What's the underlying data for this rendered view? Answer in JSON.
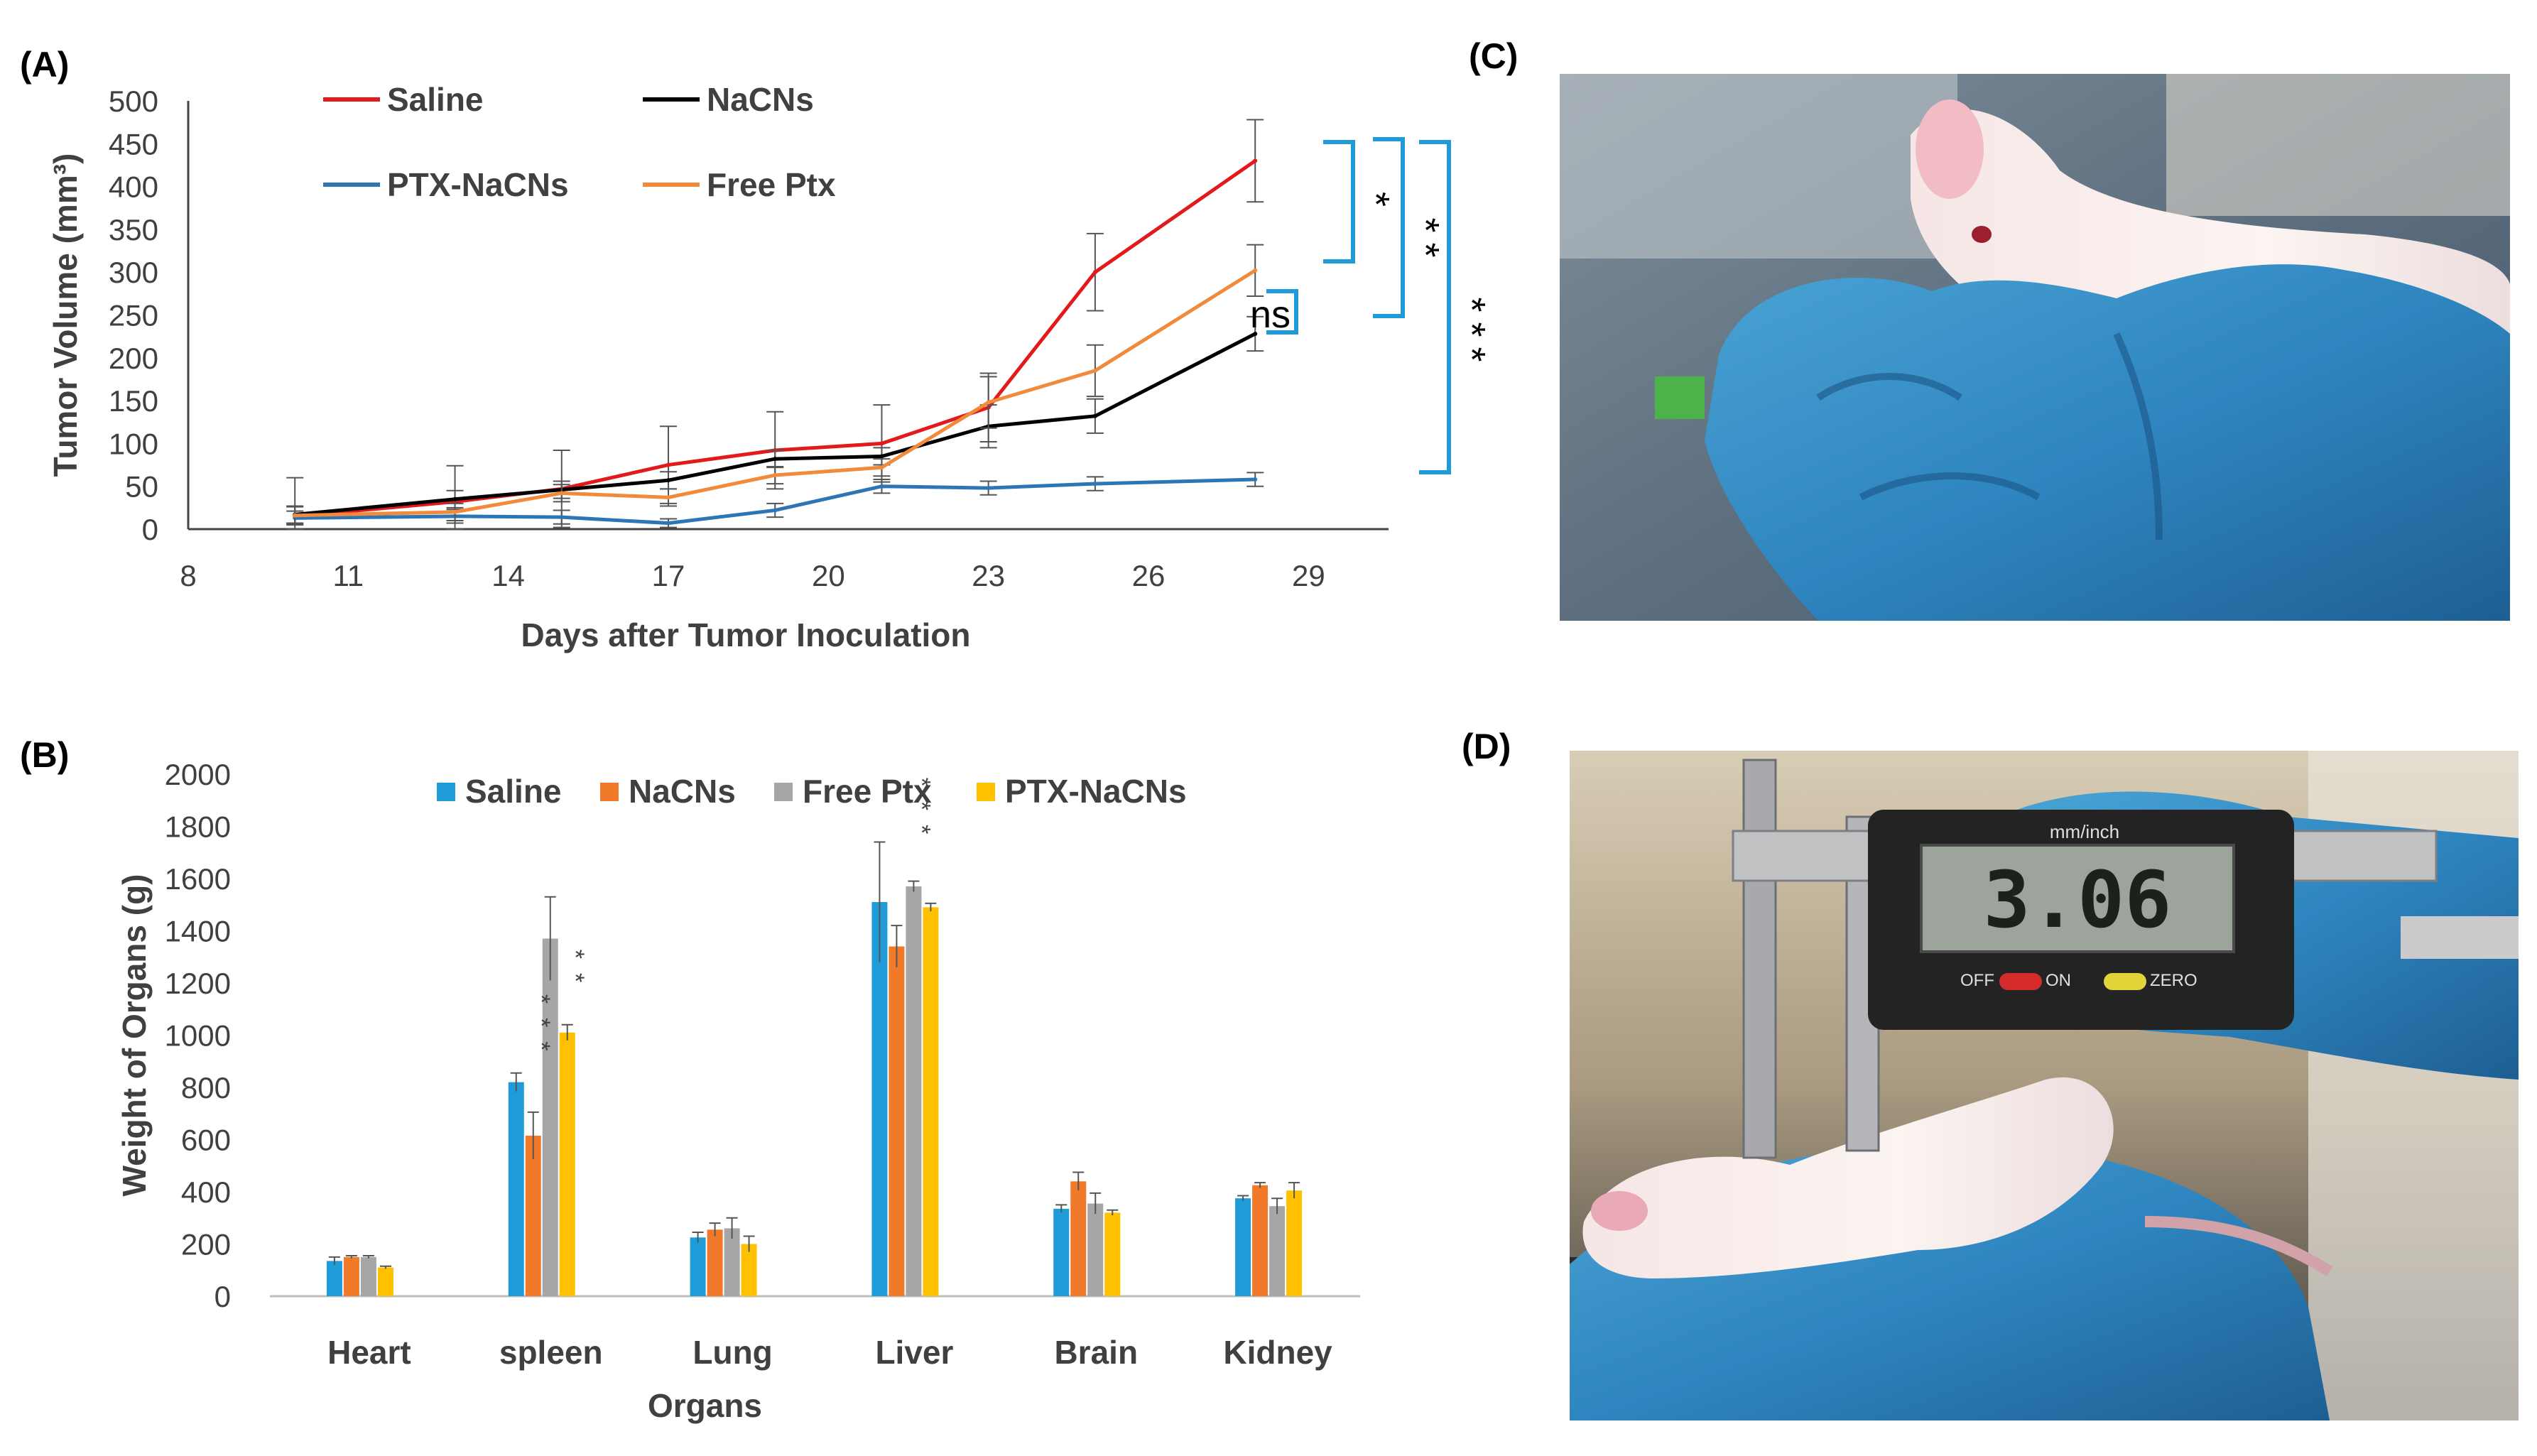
{
  "panel_labels": {
    "a": "(A)",
    "b": "(B)",
    "c": "(C)",
    "d": "(D)"
  },
  "caliper_display": "3.06",
  "caliper_labels": {
    "unit": "mm/inch",
    "off": "OFF",
    "on": "ON",
    "zero": "ZERO"
  },
  "colors": {
    "saline_line": "#e31a1c",
    "nacns_line": "#000000",
    "ptx_nacns_line": "#2e75b6",
    "free_ptx_line": "#f28a3c",
    "bar_saline": "#1f9bd7",
    "bar_nacns": "#f07a2a",
    "bar_free_ptx": "#a6a6a6",
    "bar_ptx_nacns": "#ffc000",
    "bracket": "#1f9bd7"
  },
  "chart_data": [
    {
      "type": "line",
      "title": "",
      "xlabel": "Days after Tumor Inoculation",
      "ylabel": "Tumor Volume (mm³)",
      "xlim": [
        8,
        30.5
      ],
      "ylim": [
        0,
        500
      ],
      "xticks": [
        "8",
        "11",
        "14",
        "17",
        "20",
        "23",
        "26",
        "29"
      ],
      "yticks": [
        "0",
        "50",
        "100",
        "150",
        "200",
        "250",
        "300",
        "350",
        "400",
        "450",
        "500"
      ],
      "x": [
        10,
        13,
        15,
        17,
        19,
        21,
        23,
        25,
        28
      ],
      "series": [
        {
          "name": "Saline",
          "values": [
            15,
            32,
            47,
            75,
            92,
            100,
            142,
            300,
            430
          ],
          "errors": [
            45,
            42,
            45,
            45,
            45,
            45,
            40,
            45,
            48
          ]
        },
        {
          "name": "NaCNs",
          "values": [
            17,
            35,
            46,
            57,
            82,
            85,
            120,
            132,
            228
          ],
          "errors": [
            10,
            10,
            10,
            10,
            10,
            10,
            25,
            20,
            20
          ]
        },
        {
          "name": "PTX-NaCNs",
          "values": [
            13,
            15,
            14,
            7,
            22,
            50,
            48,
            53,
            58
          ],
          "errors": [
            8,
            8,
            8,
            5,
            8,
            8,
            8,
            8,
            8
          ]
        },
        {
          "name": "Free Ptx",
          "values": [
            16,
            20,
            42,
            37,
            63,
            72,
            148,
            185,
            302
          ],
          "errors": [
            10,
            10,
            10,
            10,
            10,
            10,
            30,
            30,
            30
          ]
        }
      ],
      "legend": [
        "Saline",
        "NaCNs",
        "PTX-NaCNs",
        "Free Ptx"
      ],
      "legend_position": "top-left",
      "annotations": [
        {
          "type": "bracket",
          "from": "Saline",
          "to": "Free Ptx",
          "label": "*"
        },
        {
          "type": "bracket",
          "from": "Saline",
          "to": "NaCNs",
          "label": "**"
        },
        {
          "type": "bracket",
          "from": "Free Ptx",
          "to": "NaCNs",
          "label": "ns"
        },
        {
          "type": "bracket",
          "from": "Saline",
          "to": "PTX-NaCNs",
          "label": "***"
        }
      ]
    },
    {
      "type": "bar",
      "title": "",
      "xlabel": "Organs",
      "ylabel": "Weight of Organs (g)",
      "ylim": [
        0,
        2000
      ],
      "yticks": [
        "0",
        "200",
        "400",
        "600",
        "800",
        "1000",
        "1200",
        "1400",
        "1600",
        "1800",
        "2000"
      ],
      "categories": [
        "Heart",
        "spleen",
        "Lung",
        "Liver",
        "Brain",
        "Kidney"
      ],
      "series": [
        {
          "name": "Saline",
          "values": [
            135,
            820,
            225,
            1510,
            335,
            375
          ],
          "errors": [
            15,
            35,
            20,
            230,
            15,
            10
          ]
        },
        {
          "name": "NaCNs",
          "values": [
            150,
            615,
            255,
            1340,
            440,
            425
          ],
          "errors": [
            5,
            90,
            25,
            80,
            35,
            10
          ]
        },
        {
          "name": "Free Ptx",
          "values": [
            150,
            1370,
            260,
            1570,
            355,
            345
          ],
          "errors": [
            5,
            160,
            40,
            20,
            40,
            30
          ]
        },
        {
          "name": "PTX-NaCNs",
          "values": [
            110,
            1010,
            200,
            1490,
            320,
            405
          ],
          "errors": [
            5,
            30,
            30,
            15,
            10,
            30
          ]
        }
      ],
      "legend": [
        "Saline",
        "NaCNs",
        "Free Ptx",
        "PTX-NaCNs"
      ],
      "legend_position": "top-center",
      "significance": [
        {
          "category": "spleen",
          "series": "NaCNs",
          "label": "***"
        },
        {
          "category": "spleen",
          "series": "PTX-NaCNs",
          "label": "**"
        },
        {
          "category": "Liver",
          "series": "Free Ptx",
          "label": "***"
        }
      ]
    }
  ]
}
